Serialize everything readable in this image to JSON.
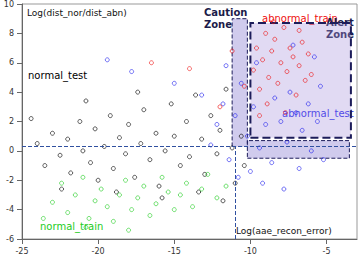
{
  "chart_data": {
    "type": "scatter",
    "xlabel": "Log(aae_recon_error)",
    "ylabel": "Log(dist_nor/dist_abn)",
    "xlim": [
      -25,
      -3
    ],
    "xticks": [
      -25,
      -20,
      -15,
      -10,
      -5
    ],
    "ylim": [
      -6,
      10
    ],
    "yticks": [
      -6,
      -4,
      -2,
      0,
      2,
      4,
      6,
      8,
      10
    ],
    "grid": false,
    "series": [
      {
        "name": "normal_test",
        "color": "#000000",
        "marker": "circle_open",
        "x": [
          -24,
          -23.5,
          -23,
          -22.5,
          -22,
          -21.8,
          -21.2,
          -21,
          -20.5,
          -20.2,
          -20,
          -19.6,
          -19.2,
          -19,
          -18.6,
          -18.2,
          -18,
          -17.6,
          -17.2,
          -17,
          -16.6,
          -16.2,
          -16,
          -15.6,
          -15.2,
          -15,
          -14.6,
          -14.2,
          -14,
          -13.6,
          -13.2,
          -13,
          -12.6,
          -12.2,
          -12,
          -11.6,
          -11.2,
          -11,
          -10.6,
          -10.4,
          -22.4,
          -18.8,
          -15.8,
          -13.4,
          -11.8,
          -24.4,
          -17.4,
          -20.8
        ],
        "values": [
          0.5,
          -1,
          1.2,
          -0.3,
          0.8,
          -1.5,
          2,
          0,
          -0.8,
          1.5,
          -2,
          0.3,
          2.4,
          -1.2,
          0.9,
          -0.2,
          1.8,
          -1.8,
          0.5,
          2.8,
          -0.6,
          1.2,
          -2.4,
          0,
          3.2,
          1,
          -1,
          2,
          -0.4,
          3.8,
          0.8,
          -1.6,
          2.4,
          -0.2,
          1.4,
          4.2,
          0.2,
          -2.2,
          1,
          -1,
          -2.6,
          -2.8,
          -3.2,
          -2.8,
          -3.4,
          2.2,
          4,
          3.4
        ]
      },
      {
        "name": "normal_train",
        "color": "#22cc22",
        "marker": "circle_open",
        "x": [
          -23,
          -22.4,
          -22,
          -21.5,
          -21,
          -20.6,
          -20.2,
          -19.8,
          -19.4,
          -19,
          -18.6,
          -18.2,
          -17.8,
          -17.4,
          -17,
          -16.6,
          -16.2,
          -15.8,
          -15.4,
          -15,
          -14.6,
          -14.2,
          -13.8,
          -13.2,
          -12.8,
          -12.2,
          -20.8,
          -18,
          -23.6,
          -11.6
        ],
        "values": [
          -3.5,
          -2.2,
          -4.2,
          -3,
          -1.8,
          -4.6,
          -3.4,
          -2.6,
          -3.8,
          -4.8,
          -3,
          -2,
          -4,
          -3.2,
          -2.4,
          -4.4,
          -3.6,
          -1.8,
          -2.8,
          -4,
          -3,
          -2.2,
          -3.8,
          -2.6,
          -1.6,
          -3.2,
          -5.2,
          -5.4,
          -4.6,
          -2.4
        ]
      },
      {
        "name": "abnormal_test",
        "color": "#2222ee",
        "marker": "circle_open",
        "x": [
          -12.6,
          -12.2,
          -11.8,
          -11.4,
          -11,
          -10.6,
          -10.2,
          -10,
          -9.8,
          -9.4,
          -9,
          -8.6,
          -8.4,
          -8,
          -7.6,
          -7.4,
          -7,
          -6.8,
          -6.6,
          -6.2,
          -6,
          -5.6,
          -5.4,
          -5.2,
          -9.6,
          -7.2,
          -5.8,
          -11.6,
          -13.2,
          -15,
          -17.8,
          -19.4,
          -9.2,
          -7.8,
          -10.8
        ],
        "values": [
          0.4,
          1.8,
          3.2,
          -0.6,
          2.4,
          4.6,
          1,
          -1.4,
          3,
          0.2,
          1.8,
          -0.8,
          3.6,
          2,
          0.6,
          4,
          2.6,
          -1.2,
          1.4,
          3.2,
          0,
          2,
          4.4,
          -0.6,
          6,
          7.2,
          6.4,
          5.8,
          3.8,
          4.6,
          5.4,
          6.2,
          -2.2,
          -2.6,
          -1.8
        ]
      },
      {
        "name": "abnormal_train",
        "color": "#ee1111",
        "marker": "circle_open",
        "x": [
          -9.8,
          -9.6,
          -9.4,
          -9.2,
          -9,
          -8.8,
          -8.6,
          -8.4,
          -8.2,
          -8,
          -7.8,
          -7.6,
          -7.4,
          -7.2,
          -7,
          -6.8,
          -6.6,
          -6.4,
          -6.2,
          -6,
          -8.9,
          -7.7,
          -10.4,
          -12,
          -14,
          -16.5,
          -11.2,
          -8.5,
          -6.8,
          -9.4
        ],
        "values": [
          5.5,
          7,
          4.2,
          6.2,
          8,
          5,
          6.8,
          7.6,
          4.6,
          6,
          8.4,
          5.4,
          7,
          6.4,
          3.8,
          5.8,
          7.4,
          4.8,
          6.6,
          5.2,
          3.2,
          2.6,
          4.4,
          3,
          5.6,
          6,
          6.8,
          8.8,
          8.2,
          2.4
        ]
      }
    ],
    "zones": [
      {
        "label": "Caution Zone",
        "areas": [
          [
            [
              -11.2,
              0.3
            ],
            [
              -10.2,
              9
            ]
          ],
          [
            [
              -10.2,
              -0.5
            ],
            [
              -3.5,
              0.7
            ]
          ]
        ]
      },
      {
        "label": "Alert Zone",
        "areas": [
          [
            [
              -10,
              0.9
            ],
            [
              -3.4,
              8.7
            ]
          ]
        ]
      }
    ],
    "reference_lines": [
      {
        "axis": "y",
        "value": 0.3
      },
      {
        "axis": "x",
        "value": -11
      }
    ]
  }
}
